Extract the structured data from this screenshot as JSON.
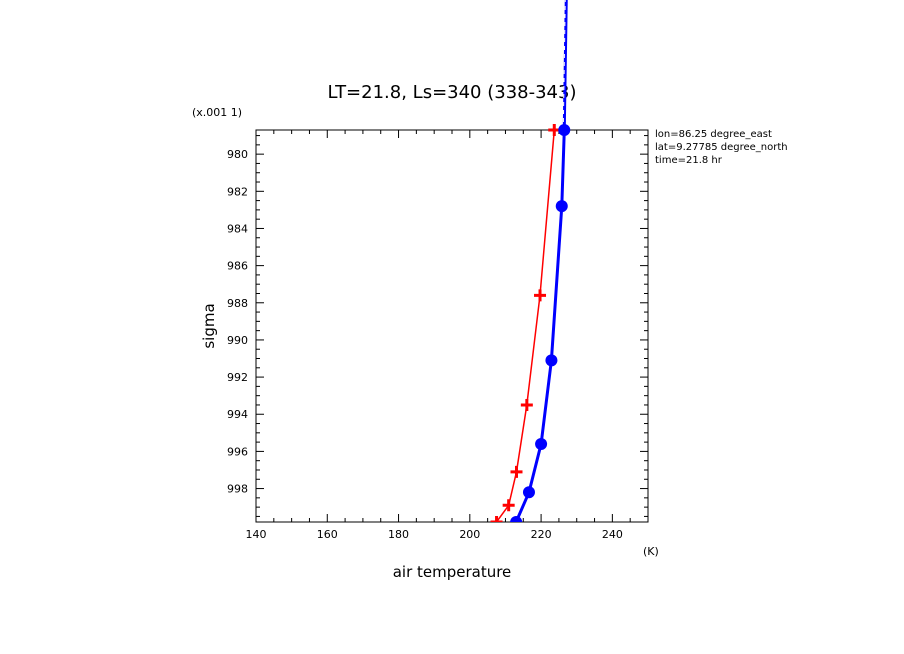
{
  "chart_data": {
    "type": "line",
    "title": "LT=21.8, Ls=340 (338-343)",
    "xlabel": "air temperature",
    "ylabel": "sigma",
    "x_unit": "(K)",
    "y_scale_note": "(x.001 1)",
    "xlim": [
      140,
      250
    ],
    "ylim": [
      999.8,
      978.7
    ],
    "x_ticks": [
      "140",
      "160",
      "180",
      "200",
      "220",
      "240"
    ],
    "x_tick_values": [
      140,
      160,
      180,
      200,
      220,
      240
    ],
    "y_ticks": [
      "980",
      "982",
      "984",
      "986",
      "988",
      "990",
      "992",
      "994",
      "996",
      "998"
    ],
    "y_tick_values": [
      980,
      982,
      984,
      986,
      988,
      990,
      992,
      994,
      996,
      998
    ],
    "annotations": [
      "lon=86.25 degree_east",
      "lat=9.27785 degree_north",
      "time=21.8 hr"
    ],
    "series": [
      {
        "color": "#ff0000",
        "marker": "plus",
        "points": [
          {
            "x": 207.5,
            "y": 999.8
          },
          {
            "x": 210.9,
            "y": 998.9
          },
          {
            "x": 213.1,
            "y": 997.1
          },
          {
            "x": 216.0,
            "y": 993.5
          },
          {
            "x": 219.7,
            "y": 987.6
          },
          {
            "x": 223.7,
            "y": 978.7
          }
        ]
      },
      {
        "color": "#0000ff",
        "marker": "circle",
        "points": [
          {
            "x": 213.0,
            "y": 999.8
          },
          {
            "x": 216.6,
            "y": 998.2
          },
          {
            "x": 220.0,
            "y": 995.6
          },
          {
            "x": 222.9,
            "y": 991.1
          },
          {
            "x": 225.8,
            "y": 982.8
          },
          {
            "x": 226.5,
            "y": 978.7
          }
        ]
      }
    ]
  }
}
